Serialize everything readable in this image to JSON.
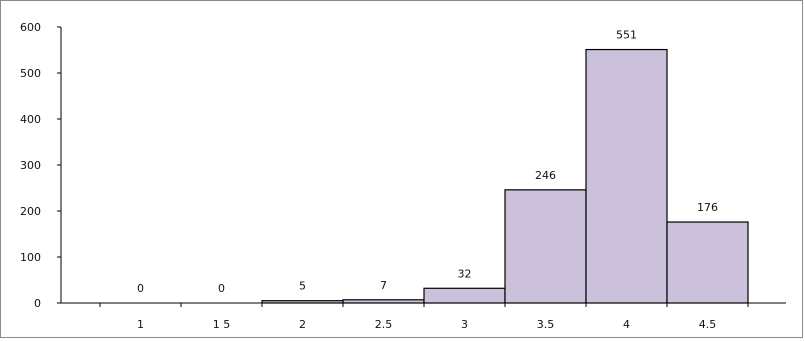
{
  "chart_data": {
    "type": "bar",
    "title": "",
    "xlabel": "",
    "ylabel": "",
    "categories": [
      "1",
      "1.5",
      "2",
      "2.5",
      "3",
      "3.5",
      "4",
      "4.5"
    ],
    "x_tick_labels": [
      "1",
      "1 5",
      "2",
      "2.5",
      "3",
      "3.5",
      "4",
      "4.5"
    ],
    "values": [
      0,
      0,
      5,
      7,
      32,
      246,
      551,
      176
    ],
    "data_labels": [
      "0",
      "0",
      "5",
      "7",
      "32",
      "246",
      "551",
      "176"
    ],
    "ylim": [
      0,
      600
    ],
    "y_ticks": [
      0,
      100,
      200,
      300,
      400,
      500,
      600
    ],
    "y_tick_labels": [
      "0",
      "100",
      "200",
      "300",
      "400",
      "500",
      "600"
    ],
    "grid": false,
    "legend": "none",
    "bar_fill": "#cbc1da",
    "bar_stroke": "#000000"
  }
}
